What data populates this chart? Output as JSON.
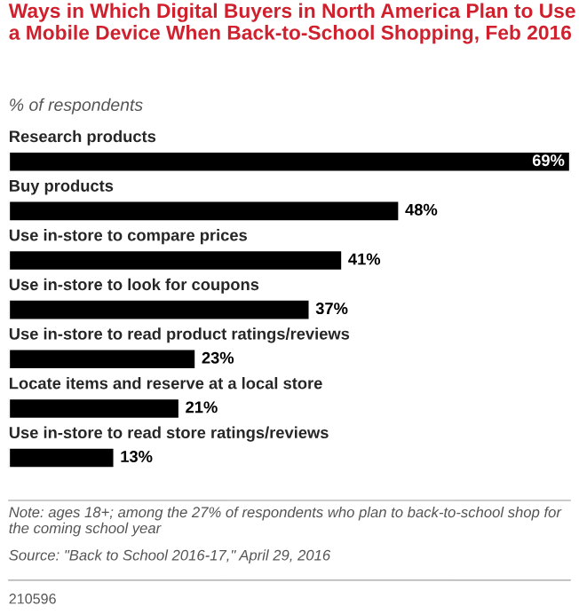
{
  "chart_data": {
    "type": "bar",
    "orientation": "horizontal",
    "data_labels": true,
    "title": "Ways in Which Digital Buyers in North America Plan to Use a Mobile Device When Back-to-School Shopping, Feb 2016",
    "subtitle": "% of respondents",
    "categories": [
      "Research products",
      "Buy products",
      "Use in-store to compare prices",
      "Use in-store to look for coupons",
      "Use in-store to read product ratings/reviews",
      "Locate items and reserve at a local store",
      "Use in-store to read store ratings/reviews"
    ],
    "values": [
      69,
      48,
      41,
      37,
      23,
      21,
      13
    ],
    "value_labels": [
      "69%",
      "48%",
      "41%",
      "37%",
      "23%",
      "21%",
      "13%"
    ],
    "color": "#000000",
    "annotations": [
      "Note: ages 18+; among the 27% of respondents who plan to back-to-school shop for the coming school year",
      "Source: \"Back to School 2016-17,\" April 29, 2016",
      "210596"
    ]
  }
}
